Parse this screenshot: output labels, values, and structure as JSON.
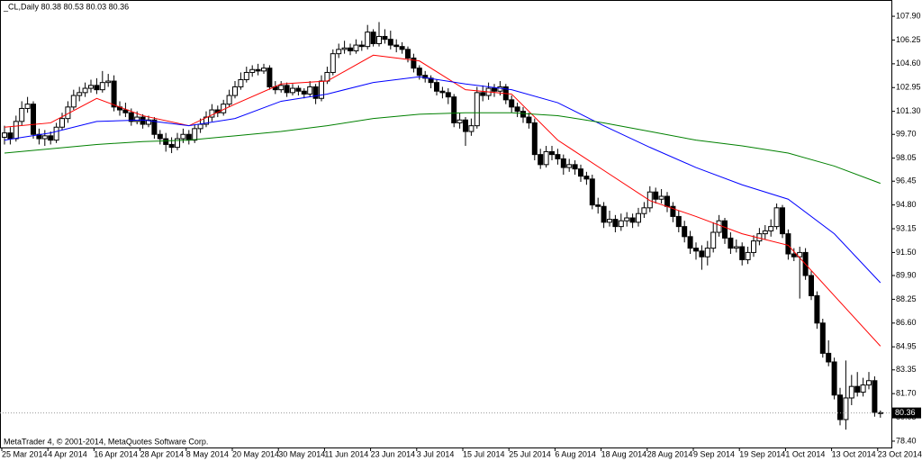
{
  "chart_data": {
    "type": "candlestick",
    "title": "_CL,Daily  80.38 80.53 80.03 80.36",
    "footer": "MetaTrader 4, © 2001-2014, MetaQuotes Software Corp.",
    "up_color": "#ffffff",
    "down_color": "#000000",
    "categories": [
      "25 Mar 2014",
      null,
      null,
      null,
      null,
      null,
      null,
      null,
      "4 Apr 2014",
      null,
      null,
      null,
      null,
      null,
      null,
      null,
      "16 Apr 2014",
      null,
      null,
      null,
      null,
      null,
      null,
      null,
      "28 Apr 2014",
      null,
      null,
      null,
      null,
      null,
      null,
      null,
      "8 May 2014",
      null,
      null,
      null,
      null,
      null,
      null,
      null,
      "20 May 2014",
      null,
      null,
      null,
      null,
      null,
      null,
      null,
      "30 May 2014",
      null,
      null,
      null,
      null,
      null,
      null,
      null,
      "11 Jun 2014",
      null,
      null,
      null,
      null,
      null,
      null,
      null,
      "23 Jun 2014",
      null,
      null,
      null,
      null,
      null,
      null,
      null,
      "3 Jul 2014",
      null,
      null,
      null,
      null,
      null,
      null,
      null,
      "15 Jul 2014",
      null,
      null,
      null,
      null,
      null,
      null,
      null,
      "25 Jul 2014",
      null,
      null,
      null,
      null,
      null,
      null,
      null,
      "6 Aug 2014",
      null,
      null,
      null,
      null,
      null,
      null,
      null,
      "18 Aug 2014",
      null,
      null,
      null,
      null,
      null,
      null,
      null,
      "28 Aug 2014",
      null,
      null,
      null,
      null,
      null,
      null,
      null,
      "9 Sep 2014",
      null,
      null,
      null,
      null,
      null,
      null,
      null,
      "19 Sep 2014",
      null,
      null,
      null,
      null,
      null,
      null,
      null,
      "1 Oct 2014",
      null,
      null,
      null,
      null,
      null,
      null,
      null,
      "13 Oct 2014",
      null,
      null,
      null,
      null,
      null,
      null,
      null,
      "23 Oct 2014"
    ],
    "ohlc": [
      [
        99.5,
        100.3,
        99.0,
        99.8
      ],
      [
        99.8,
        100.2,
        99.0,
        99.4
      ],
      [
        99.4,
        101.0,
        99.2,
        100.6
      ],
      [
        100.6,
        102.0,
        100.3,
        101.5
      ],
      [
        101.5,
        102.3,
        101.2,
        101.8
      ],
      [
        101.8,
        102.0,
        99.4,
        99.7
      ],
      [
        99.7,
        100.1,
        99.0,
        99.4
      ],
      [
        99.4,
        100.0,
        98.9,
        99.6
      ],
      [
        99.6,
        99.9,
        99.0,
        99.3
      ],
      [
        99.3,
        100.5,
        99.1,
        100.2
      ],
      [
        100.2,
        101.2,
        100.0,
        100.8
      ],
      [
        100.8,
        102.0,
        100.5,
        101.6
      ],
      [
        101.6,
        102.8,
        101.4,
        102.4
      ],
      [
        102.4,
        103.0,
        102.0,
        102.6
      ],
      [
        102.6,
        103.3,
        102.3,
        102.9
      ],
      [
        102.9,
        103.5,
        102.6,
        103.1
      ],
      [
        103.1,
        103.6,
        102.5,
        102.8
      ],
      [
        102.8,
        104.1,
        102.6,
        103.3
      ],
      [
        103.3,
        103.9,
        103.0,
        103.4
      ],
      [
        103.4,
        103.8,
        101.3,
        101.6
      ],
      [
        101.6,
        102.0,
        101.0,
        101.4
      ],
      [
        101.4,
        101.9,
        100.9,
        101.2
      ],
      [
        101.2,
        101.5,
        100.3,
        100.6
      ],
      [
        100.6,
        101.3,
        100.4,
        100.9
      ],
      [
        100.9,
        101.1,
        100.1,
        100.4
      ],
      [
        100.4,
        101.0,
        100.2,
        100.7
      ],
      [
        100.7,
        100.9,
        99.4,
        99.7
      ],
      [
        99.7,
        100.0,
        99.0,
        99.4
      ],
      [
        99.4,
        99.8,
        98.5,
        99.0
      ],
      [
        99.0,
        99.5,
        98.4,
        98.8
      ],
      [
        98.8,
        99.8,
        98.6,
        99.4
      ],
      [
        99.4,
        100.1,
        99.1,
        99.7
      ],
      [
        99.7,
        100.0,
        99.0,
        99.3
      ],
      [
        99.3,
        100.4,
        99.1,
        100.1
      ],
      [
        100.1,
        100.8,
        99.8,
        100.4
      ],
      [
        100.4,
        101.3,
        100.2,
        100.9
      ],
      [
        100.9,
        101.8,
        100.6,
        101.4
      ],
      [
        101.4,
        101.7,
        100.9,
        101.2
      ],
      [
        101.2,
        102.1,
        101.0,
        101.8
      ],
      [
        101.8,
        102.8,
        101.6,
        102.4
      ],
      [
        102.4,
        103.4,
        102.2,
        103.0
      ],
      [
        103.0,
        104.0,
        102.8,
        103.5
      ],
      [
        103.5,
        104.4,
        103.3,
        104.0
      ],
      [
        104.0,
        104.5,
        103.7,
        104.2
      ],
      [
        104.2,
        104.6,
        103.8,
        104.1
      ],
      [
        104.1,
        104.6,
        103.9,
        104.3
      ],
      [
        104.3,
        104.5,
        102.8,
        103.0
      ],
      [
        103.0,
        103.4,
        102.5,
        102.8
      ],
      [
        102.8,
        103.4,
        102.6,
        103.1
      ],
      [
        103.1,
        103.3,
        102.3,
        102.6
      ],
      [
        102.6,
        103.2,
        102.4,
        102.9
      ],
      [
        102.9,
        103.1,
        102.4,
        102.7
      ],
      [
        102.7,
        102.9,
        102.2,
        102.5
      ],
      [
        102.5,
        103.4,
        102.3,
        103.0
      ],
      [
        103.0,
        103.2,
        101.8,
        102.2
      ],
      [
        102.2,
        103.8,
        102.0,
        103.4
      ],
      [
        103.4,
        104.4,
        103.2,
        104.0
      ],
      [
        104.0,
        105.6,
        103.8,
        105.3
      ],
      [
        105.3,
        106.0,
        105.0,
        105.6
      ],
      [
        105.6,
        106.2,
        105.3,
        105.7
      ],
      [
        105.7,
        106.0,
        105.2,
        105.5
      ],
      [
        105.5,
        106.3,
        105.3,
        105.9
      ],
      [
        105.9,
        106.2,
        105.5,
        105.8
      ],
      [
        105.8,
        107.3,
        105.6,
        106.8
      ],
      [
        106.8,
        107.0,
        105.8,
        106.0
      ],
      [
        106.0,
        107.5,
        105.8,
        106.5
      ],
      [
        106.5,
        107.0,
        106.0,
        106.3
      ],
      [
        106.3,
        106.9,
        105.6,
        105.9
      ],
      [
        105.9,
        106.3,
        105.4,
        105.8
      ],
      [
        105.8,
        106.1,
        105.3,
        105.6
      ],
      [
        105.6,
        105.8,
        104.7,
        105.0
      ],
      [
        105.0,
        105.3,
        104.0,
        104.3
      ],
      [
        104.3,
        104.5,
        103.5,
        103.8
      ],
      [
        103.8,
        104.1,
        103.3,
        103.6
      ],
      [
        103.6,
        103.8,
        102.9,
        103.3
      ],
      [
        103.3,
        103.5,
        102.4,
        102.7
      ],
      [
        102.7,
        103.0,
        102.2,
        102.6
      ],
      [
        102.6,
        102.9,
        101.8,
        102.3
      ],
      [
        102.3,
        102.5,
        100.2,
        100.5
      ],
      [
        100.5,
        101.2,
        100.1,
        100.7
      ],
      [
        100.7,
        100.9,
        98.9,
        99.9
      ],
      [
        99.9,
        100.8,
        99.6,
        100.3
      ],
      [
        100.3,
        103.0,
        100.1,
        102.6
      ],
      [
        102.6,
        103.1,
        102.0,
        102.4
      ],
      [
        102.4,
        103.3,
        102.1,
        102.9
      ],
      [
        102.9,
        103.2,
        102.3,
        102.7
      ],
      [
        102.7,
        103.4,
        102.4,
        103.0
      ],
      [
        103.0,
        103.2,
        101.8,
        102.1
      ],
      [
        102.1,
        102.4,
        101.2,
        101.6
      ],
      [
        101.6,
        101.9,
        100.9,
        101.3
      ],
      [
        101.3,
        101.6,
        100.5,
        100.9
      ],
      [
        100.9,
        101.2,
        100.1,
        100.5
      ],
      [
        100.5,
        100.8,
        97.9,
        98.3
      ],
      [
        98.3,
        98.7,
        97.3,
        97.6
      ],
      [
        97.6,
        98.9,
        97.4,
        98.5
      ],
      [
        98.5,
        98.9,
        97.9,
        98.3
      ],
      [
        98.3,
        98.7,
        97.6,
        98.0
      ],
      [
        98.0,
        98.3,
        96.9,
        97.4
      ],
      [
        97.4,
        98.0,
        97.1,
        97.6
      ],
      [
        97.6,
        97.9,
        96.9,
        97.3
      ],
      [
        97.3,
        97.6,
        96.4,
        96.8
      ],
      [
        96.8,
        97.1,
        96.2,
        96.6
      ],
      [
        96.6,
        96.9,
        94.5,
        94.8
      ],
      [
        94.8,
        95.3,
        94.2,
        94.7
      ],
      [
        94.7,
        95.0,
        93.2,
        93.6
      ],
      [
        93.6,
        94.4,
        93.3,
        93.8
      ],
      [
        93.8,
        94.1,
        92.9,
        93.3
      ],
      [
        93.3,
        94.2,
        93.0,
        93.7
      ],
      [
        93.7,
        94.3,
        93.3,
        93.9
      ],
      [
        93.9,
        94.2,
        93.2,
        93.6
      ],
      [
        93.6,
        94.6,
        93.3,
        94.2
      ],
      [
        94.2,
        95.0,
        93.9,
        94.6
      ],
      [
        94.6,
        96.1,
        94.3,
        95.7
      ],
      [
        95.7,
        96.0,
        94.9,
        95.2
      ],
      [
        95.2,
        95.9,
        94.9,
        95.4
      ],
      [
        95.4,
        95.7,
        94.3,
        94.7
      ],
      [
        94.7,
        95.0,
        93.6,
        94.0
      ],
      [
        94.0,
        94.4,
        92.9,
        93.3
      ],
      [
        93.3,
        93.7,
        92.2,
        92.6
      ],
      [
        92.6,
        93.0,
        91.4,
        91.8
      ],
      [
        91.8,
        92.2,
        91.0,
        91.6
      ],
      [
        91.6,
        92.0,
        90.3,
        91.2
      ],
      [
        91.2,
        92.3,
        90.6,
        91.8
      ],
      [
        91.8,
        93.6,
        91.5,
        92.9
      ],
      [
        92.9,
        94.1,
        92.6,
        93.7
      ],
      [
        93.7,
        93.9,
        92.1,
        92.5
      ],
      [
        92.5,
        92.9,
        91.4,
        91.8
      ],
      [
        91.8,
        92.4,
        91.5,
        91.9
      ],
      [
        91.9,
        92.2,
        90.6,
        91.0
      ],
      [
        91.0,
        91.9,
        90.7,
        91.5
      ],
      [
        91.5,
        92.7,
        91.2,
        92.3
      ],
      [
        92.3,
        93.2,
        92.0,
        92.8
      ],
      [
        92.8,
        93.4,
        92.4,
        93.0
      ],
      [
        93.0,
        93.8,
        92.6,
        93.3
      ],
      [
        93.3,
        94.9,
        93.1,
        94.6
      ],
      [
        94.6,
        94.8,
        92.5,
        92.8
      ],
      [
        92.8,
        93.1,
        91.0,
        91.4
      ],
      [
        91.4,
        91.8,
        90.9,
        91.2
      ],
      [
        91.2,
        91.9,
        88.3,
        91.5
      ],
      [
        91.5,
        91.8,
        89.6,
        89.9
      ],
      [
        89.9,
        90.2,
        88.2,
        88.5
      ],
      [
        88.5,
        88.8,
        86.2,
        86.6
      ],
      [
        86.6,
        86.9,
        84.2,
        84.5
      ],
      [
        84.5,
        85.4,
        83.6,
        83.9
      ],
      [
        83.9,
        84.2,
        81.3,
        81.6
      ],
      [
        81.6,
        82.1,
        79.5,
        79.9
      ],
      [
        79.9,
        84.0,
        79.2,
        81.4
      ],
      [
        81.4,
        83.0,
        80.9,
        82.2
      ],
      [
        82.2,
        83.2,
        81.5,
        81.8
      ],
      [
        81.8,
        82.8,
        81.5,
        82.3
      ],
      [
        82.3,
        83.2,
        82.0,
        82.6
      ],
      [
        82.6,
        82.9,
        80.1,
        80.4
      ],
      [
        80.38,
        80.53,
        80.03,
        80.36
      ]
    ],
    "ma_series": [
      {
        "color": "#ff0000",
        "x": [
          0,
          8,
          16,
          24,
          32,
          40,
          48,
          56,
          64,
          72,
          80,
          88,
          96,
          104,
          112,
          120,
          128,
          136,
          144,
          152
        ],
        "values": [
          100.2,
          100.5,
          102.2,
          101.0,
          100.3,
          101.8,
          103.2,
          103.4,
          105.2,
          104.8,
          102.8,
          102.5,
          99.3,
          97.2,
          95.1,
          94.0,
          92.8,
          92.0,
          88.5,
          85.0
        ]
      },
      {
        "color": "#0000ff",
        "x": [
          0,
          8,
          16,
          24,
          32,
          40,
          48,
          56,
          64,
          72,
          80,
          88,
          96,
          104,
          112,
          120,
          128,
          136,
          144,
          152
        ],
        "values": [
          99.3,
          99.8,
          100.6,
          100.7,
          100.3,
          100.8,
          102.0,
          102.5,
          103.3,
          103.7,
          103.2,
          102.8,
          101.9,
          100.3,
          98.8,
          97.4,
          96.2,
          95.2,
          92.8,
          89.4
        ]
      },
      {
        "color": "#008000",
        "x": [
          0,
          8,
          16,
          24,
          32,
          40,
          48,
          56,
          64,
          72,
          80,
          88,
          96,
          104,
          112,
          120,
          128,
          136,
          144,
          152
        ],
        "values": [
          98.4,
          98.7,
          99.0,
          99.2,
          99.3,
          99.6,
          99.9,
          100.3,
          100.8,
          101.1,
          101.2,
          101.2,
          101.0,
          100.5,
          99.9,
          99.3,
          98.9,
          98.4,
          97.5,
          96.3
        ]
      }
    ],
    "ylim": [
      77.96,
      109.03
    ],
    "yticks": [
      {
        "value": 107.9,
        "label": "107.90"
      },
      {
        "value": 106.25,
        "label": "106.25"
      },
      {
        "value": 104.6,
        "label": "104.60"
      },
      {
        "value": 102.95,
        "label": "102.95"
      },
      {
        "value": 101.3,
        "label": "101.30"
      },
      {
        "value": 99.7,
        "label": "99.70"
      },
      {
        "value": 98.05,
        "label": "98.05"
      },
      {
        "value": 96.45,
        "label": "96.45"
      },
      {
        "value": 94.8,
        "label": "94.80"
      },
      {
        "value": 93.15,
        "label": "93.15"
      },
      {
        "value": 91.5,
        "label": "91.50"
      },
      {
        "value": 89.9,
        "label": "89.90"
      },
      {
        "value": 88.25,
        "label": "88.25"
      },
      {
        "value": 86.6,
        "label": "86.60"
      },
      {
        "value": 84.95,
        "label": "84.95"
      },
      {
        "value": 83.35,
        "label": "83.35"
      },
      {
        "value": 81.7,
        "label": "81.70"
      },
      {
        "value": 80.05,
        "label": "80.05"
      },
      {
        "value": 78.4,
        "label": "78.40"
      }
    ],
    "current_price": {
      "value": 80.36,
      "label": "80.36"
    }
  }
}
